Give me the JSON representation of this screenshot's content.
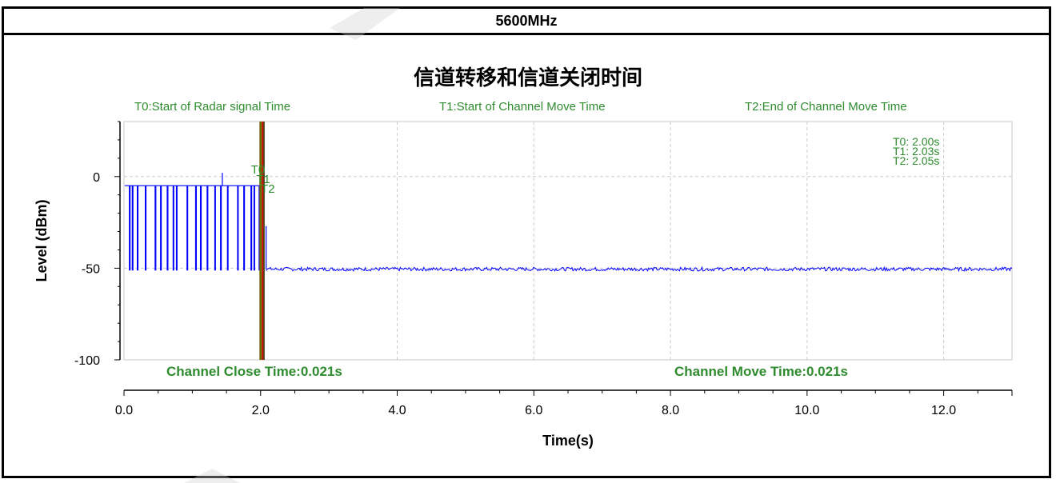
{
  "header": {
    "title": "5600MHz"
  },
  "chart_data": {
    "type": "line",
    "title": "信道转移和信道关闭时间",
    "xlabel": "Time(s)",
    "ylabel": "Level (dBm)",
    "xlim": [
      0,
      13
    ],
    "ylim": [
      -100,
      30
    ],
    "xticks": [
      0,
      2,
      4,
      6,
      8,
      10,
      12
    ],
    "xtick_labels": [
      "0.0",
      "2.0",
      "4.0",
      "6.0",
      "8.0",
      "10.0",
      "12.0"
    ],
    "yticks": [
      0,
      -50,
      -100
    ],
    "ytick_labels": [
      "0",
      "-50",
      "-100"
    ],
    "grid": true,
    "top_labels": [
      "T0:Start of Radar signal Time",
      "T1:Start of Channel Move Time",
      "T2:End of Channel Move Time"
    ],
    "readout": [
      "T0: 2.00s",
      "T1: 2.03s",
      "T2: 2.05s"
    ],
    "markers": [
      {
        "name": "T0",
        "x": 2.0
      },
      {
        "name": "T1",
        "x": 2.03
      },
      {
        "name": "T2",
        "x": 2.05
      }
    ],
    "bottom_labels": [
      "Channel Close Time:0.021s",
      "Channel Move Time:0.021s"
    ],
    "series": [
      {
        "color": "#0000ff",
        "burst": {
          "x_start": 0.0,
          "x_end": 2.0,
          "high": -5,
          "low": -51
        },
        "drop": {
          "x": 2.08,
          "peak": -27
        },
        "noise_floor": {
          "x_start": 2.08,
          "x_end": 13.0,
          "mean": -50.5,
          "jitter": 1.0
        },
        "spike": {
          "x": 1.44,
          "y": 2
        }
      }
    ],
    "colors": {
      "trace": "#0000ff",
      "label_green": "#2e8b2e",
      "marker_red": "#cc0000",
      "marker_olive": "#6b6b00"
    }
  }
}
